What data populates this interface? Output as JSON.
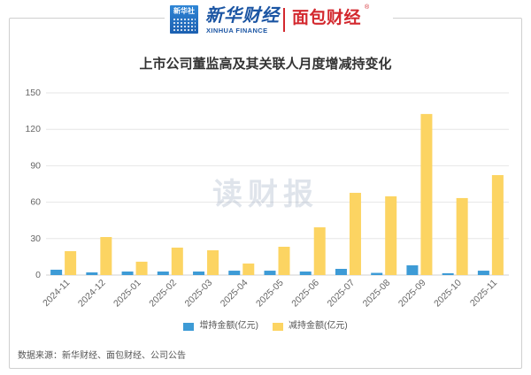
{
  "header": {
    "xinhua_badge": "新华社",
    "xinhua_name": "新华财经",
    "xinhua_en": "XINHUA FINANCE",
    "mianbao_name": "面包财经",
    "mianbao_mark": "®"
  },
  "watermark": "读财报",
  "source": "数据来源：新华财经、面包财经、公司公告",
  "colors": {
    "xinhua_blue": "#1b55a3",
    "mianbao_red": "#d3282e",
    "grid": "#e6e6e6",
    "axis": "#d0d0d0"
  },
  "chart_data": {
    "type": "bar",
    "title": "上市公司董监高及其关联人月度增减持变化",
    "categories": [
      "2024-11",
      "2024-12",
      "2025-01",
      "2025-02",
      "2025-03",
      "2025-04",
      "2025-05",
      "2025-06",
      "2025-07",
      "2025-08",
      "2025-09",
      "2025-10",
      "2025-11"
    ],
    "series": [
      {
        "name": "增持金额(亿元)",
        "color": "#3d9bd6",
        "values": [
          4.4,
          2.2,
          2.9,
          2.9,
          2.9,
          3.6,
          3.6,
          2.9,
          5.1,
          1.8,
          8.0,
          1.5,
          3.6
        ]
      },
      {
        "name": "减持金额(亿元)",
        "color": "#fcd462",
        "values": [
          19.7,
          31.3,
          11.0,
          22.6,
          20.4,
          9.5,
          23.3,
          39.3,
          67.7,
          64.8,
          132.6,
          63.4,
          82.3
        ]
      }
    ],
    "ylim": [
      0,
      150
    ],
    "yticks": [
      0,
      30,
      60,
      90,
      120,
      150
    ],
    "grid": true,
    "legend": "bottom"
  }
}
